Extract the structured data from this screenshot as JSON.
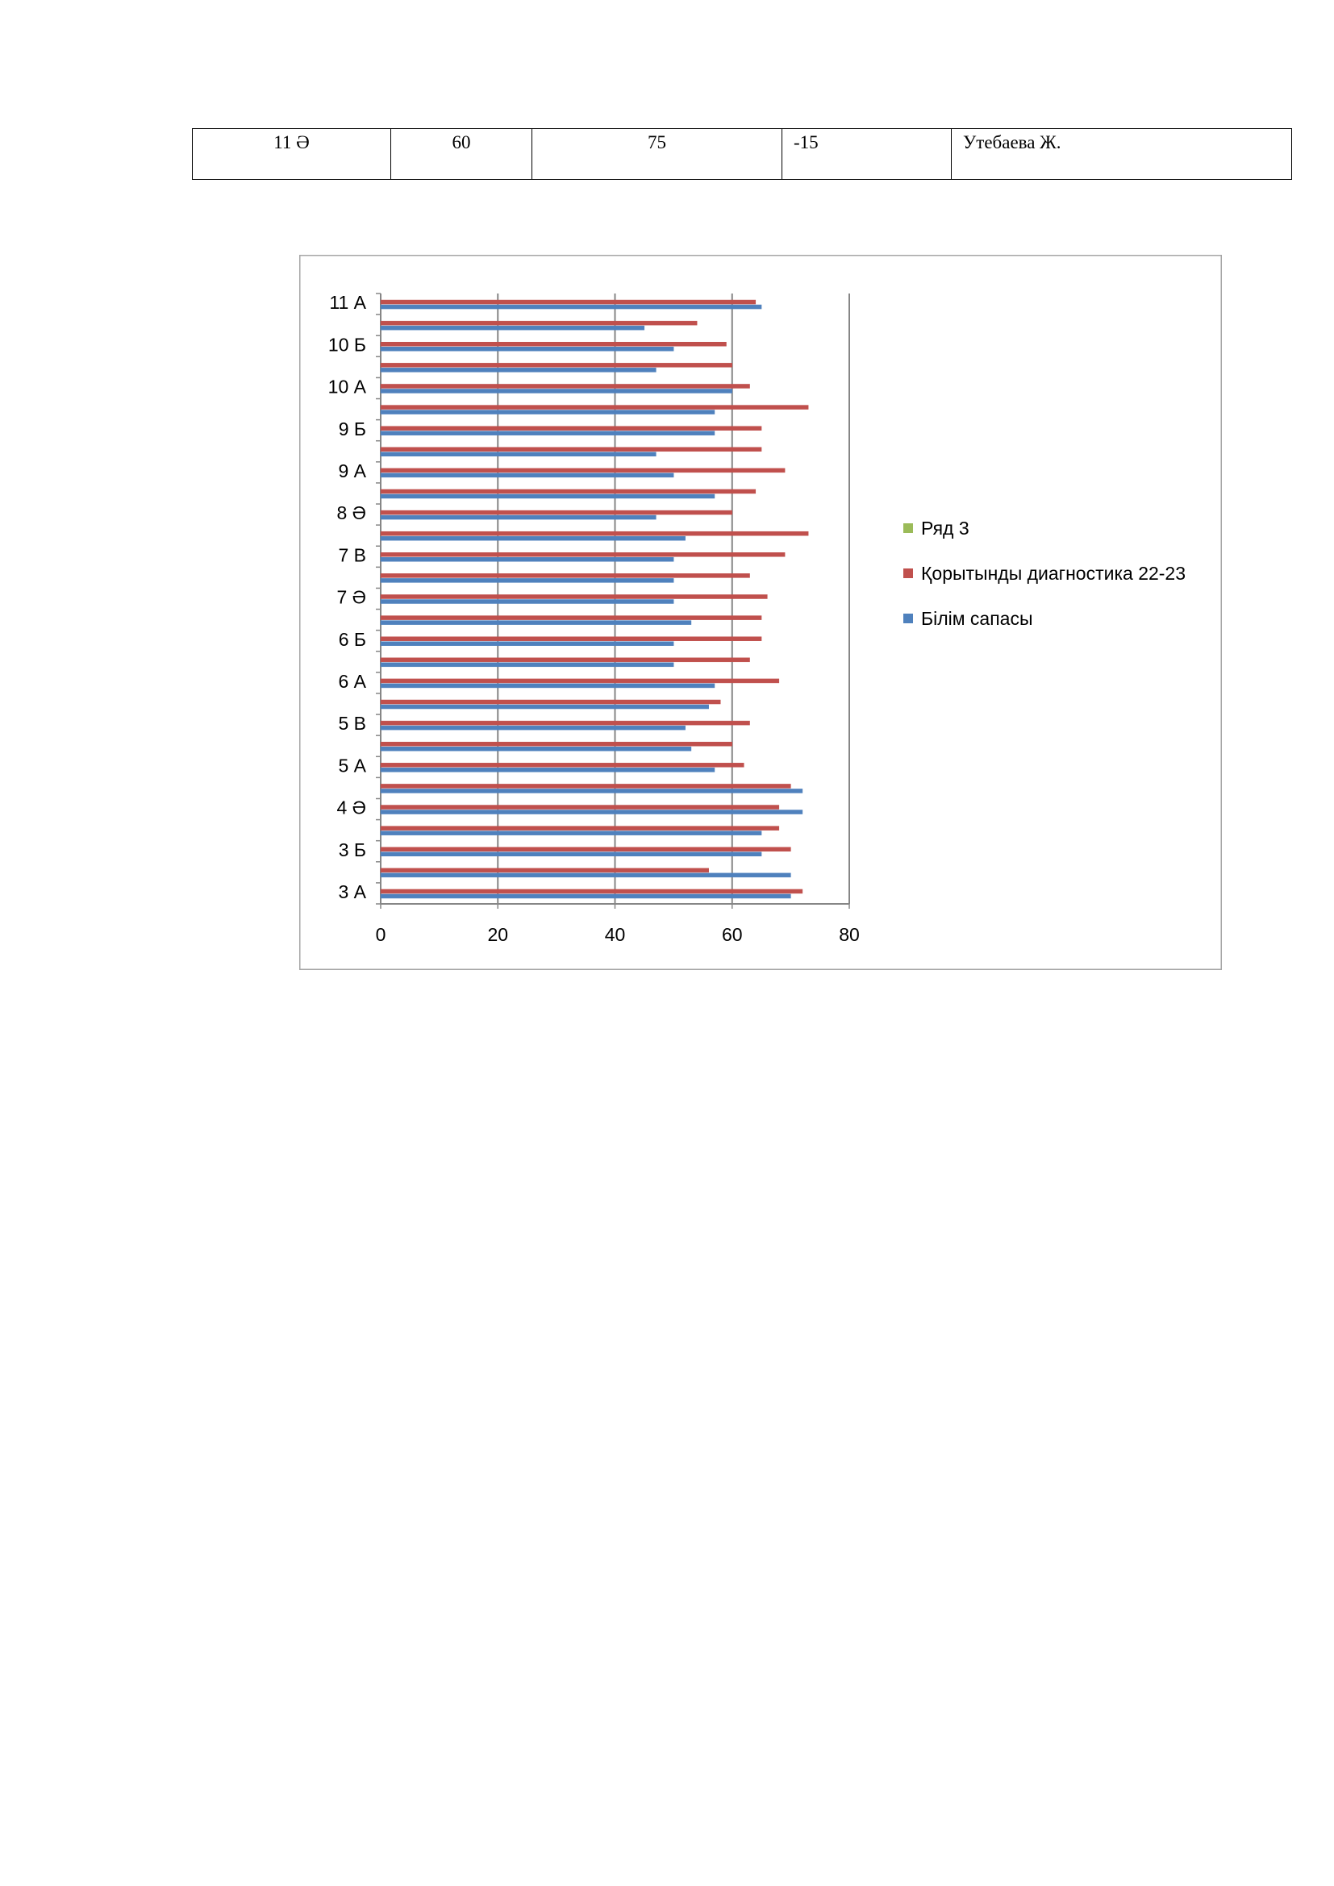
{
  "table": {
    "rows": [
      [
        "11 Ә",
        "60",
        "75",
        "-15",
        "Утебаева Ж."
      ]
    ]
  },
  "chart_data": {
    "type": "bar",
    "orientation": "horizontal",
    "categories": [
      "3 А",
      null,
      "3 Б",
      null,
      "4 Ә",
      null,
      "5 А",
      null,
      "5 В",
      null,
      "6 А",
      null,
      "6 Б",
      null,
      "7 Ә",
      null,
      "7 В",
      null,
      "8 Ә",
      null,
      "9 А",
      null,
      "9 Б",
      null,
      "10 А",
      null,
      "10 Б",
      null,
      "11 А"
    ],
    "series": [
      {
        "name": "Білім сапасы",
        "color": "#4f81bd",
        "values": [
          70,
          70,
          65,
          65,
          72,
          72,
          57,
          53,
          52,
          56,
          57,
          50,
          50,
          53,
          50,
          50,
          50,
          52,
          47,
          57,
          50,
          47,
          57,
          57,
          60,
          47,
          50,
          45,
          65
        ]
      },
      {
        "name": "Қорытынды диагностика 22-23",
        "color": "#c0504d",
        "values": [
          72,
          56,
          70,
          68,
          68,
          70,
          62,
          60,
          63,
          58,
          68,
          63,
          65,
          65,
          66,
          63,
          69,
          73,
          60,
          64,
          69,
          65,
          65,
          73,
          63,
          60,
          59,
          54,
          64
        ]
      },
      {
        "name": "Ряд 3",
        "color": "#9bbb59",
        "values": [
          null,
          null,
          null,
          null,
          null,
          null,
          null,
          null,
          null,
          null,
          null,
          null,
          null,
          null,
          null,
          null,
          null,
          null,
          null,
          null,
          null,
          null,
          null,
          null,
          null,
          null,
          null,
          null,
          null
        ]
      }
    ],
    "xlim": [
      0,
      80
    ],
    "xticks": [
      0,
      20,
      40,
      60,
      80
    ],
    "grid": true,
    "legend": "right"
  }
}
